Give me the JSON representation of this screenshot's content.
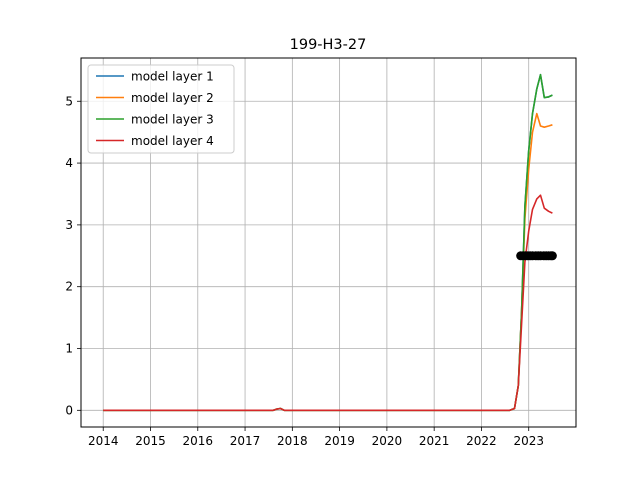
{
  "chart_data": {
    "type": "line",
    "title": "199-H3-27",
    "xlabel": "",
    "ylabel": "",
    "x_ticks": [
      "2014",
      "2015",
      "2016",
      "2017",
      "2018",
      "2019",
      "2020",
      "2021",
      "2022",
      "2023"
    ],
    "y_ticks": [
      "0",
      "1",
      "2",
      "3",
      "4",
      "5"
    ],
    "xlim": [
      2013.53,
      2024.0
    ],
    "ylim": [
      -0.27,
      5.7
    ],
    "grid": true,
    "legend_position": "top-left",
    "series": [
      {
        "name": "model layer 1",
        "color": "#1f77b4",
        "x": [
          2014.0,
          2017.6,
          2017.67,
          2017.75,
          2017.83,
          2022.0,
          2022.6,
          2022.7,
          2022.78,
          2022.85,
          2022.92,
          2023.0,
          2023.08,
          2023.17,
          2023.25,
          2023.33,
          2023.42,
          2023.5
        ],
        "y": [
          0,
          0,
          0.02,
          0.03,
          0,
          0,
          0,
          0.03,
          0.4,
          1.6,
          3.3,
          4.2,
          4.8,
          5.2,
          5.43,
          5.06,
          5.07,
          5.1
        ]
      },
      {
        "name": "model layer 2",
        "color": "#ff7f0e",
        "x": [
          2014.0,
          2017.6,
          2017.67,
          2017.75,
          2017.83,
          2022.0,
          2022.6,
          2022.7,
          2022.78,
          2022.85,
          2022.92,
          2023.0,
          2023.08,
          2023.17,
          2023.25,
          2023.33,
          2023.42,
          2023.5
        ],
        "y": [
          0,
          0,
          0.02,
          0.03,
          0,
          0,
          0,
          0.03,
          0.4,
          1.6,
          3.1,
          3.9,
          4.5,
          4.8,
          4.6,
          4.58,
          4.6,
          4.62
        ]
      },
      {
        "name": "model layer 3",
        "color": "#2ca02c",
        "x": [
          2014.0,
          2017.6,
          2017.67,
          2017.75,
          2017.83,
          2022.0,
          2022.6,
          2022.7,
          2022.78,
          2022.85,
          2022.92,
          2023.0,
          2023.08,
          2023.17,
          2023.25,
          2023.33,
          2023.42,
          2023.5
        ],
        "y": [
          0,
          0,
          0.02,
          0.03,
          0,
          0,
          0,
          0.03,
          0.4,
          1.6,
          3.3,
          4.2,
          4.8,
          5.2,
          5.43,
          5.06,
          5.07,
          5.1
        ]
      },
      {
        "name": "model layer 4",
        "color": "#d62728",
        "x": [
          2014.0,
          2017.6,
          2017.67,
          2017.75,
          2017.83,
          2022.0,
          2022.6,
          2022.7,
          2022.78,
          2022.85,
          2022.92,
          2023.0,
          2023.08,
          2023.17,
          2023.25,
          2023.33,
          2023.42,
          2023.5
        ],
        "y": [
          0,
          0,
          0.02,
          0.03,
          0,
          0,
          0,
          0.03,
          0.4,
          1.4,
          2.4,
          2.9,
          3.25,
          3.42,
          3.48,
          3.27,
          3.22,
          3.19
        ]
      }
    ],
    "observations": {
      "color": "#000000",
      "x": [
        2022.83,
        2022.88,
        2022.93,
        2022.98,
        2023.03,
        2023.08,
        2023.15,
        2023.2,
        2023.25,
        2023.32,
        2023.37,
        2023.42,
        2023.47,
        2023.5
      ],
      "y": [
        2.5,
        2.5,
        2.5,
        2.5,
        2.5,
        2.5,
        2.5,
        2.5,
        2.5,
        2.5,
        2.5,
        2.5,
        2.5,
        2.5
      ]
    }
  }
}
